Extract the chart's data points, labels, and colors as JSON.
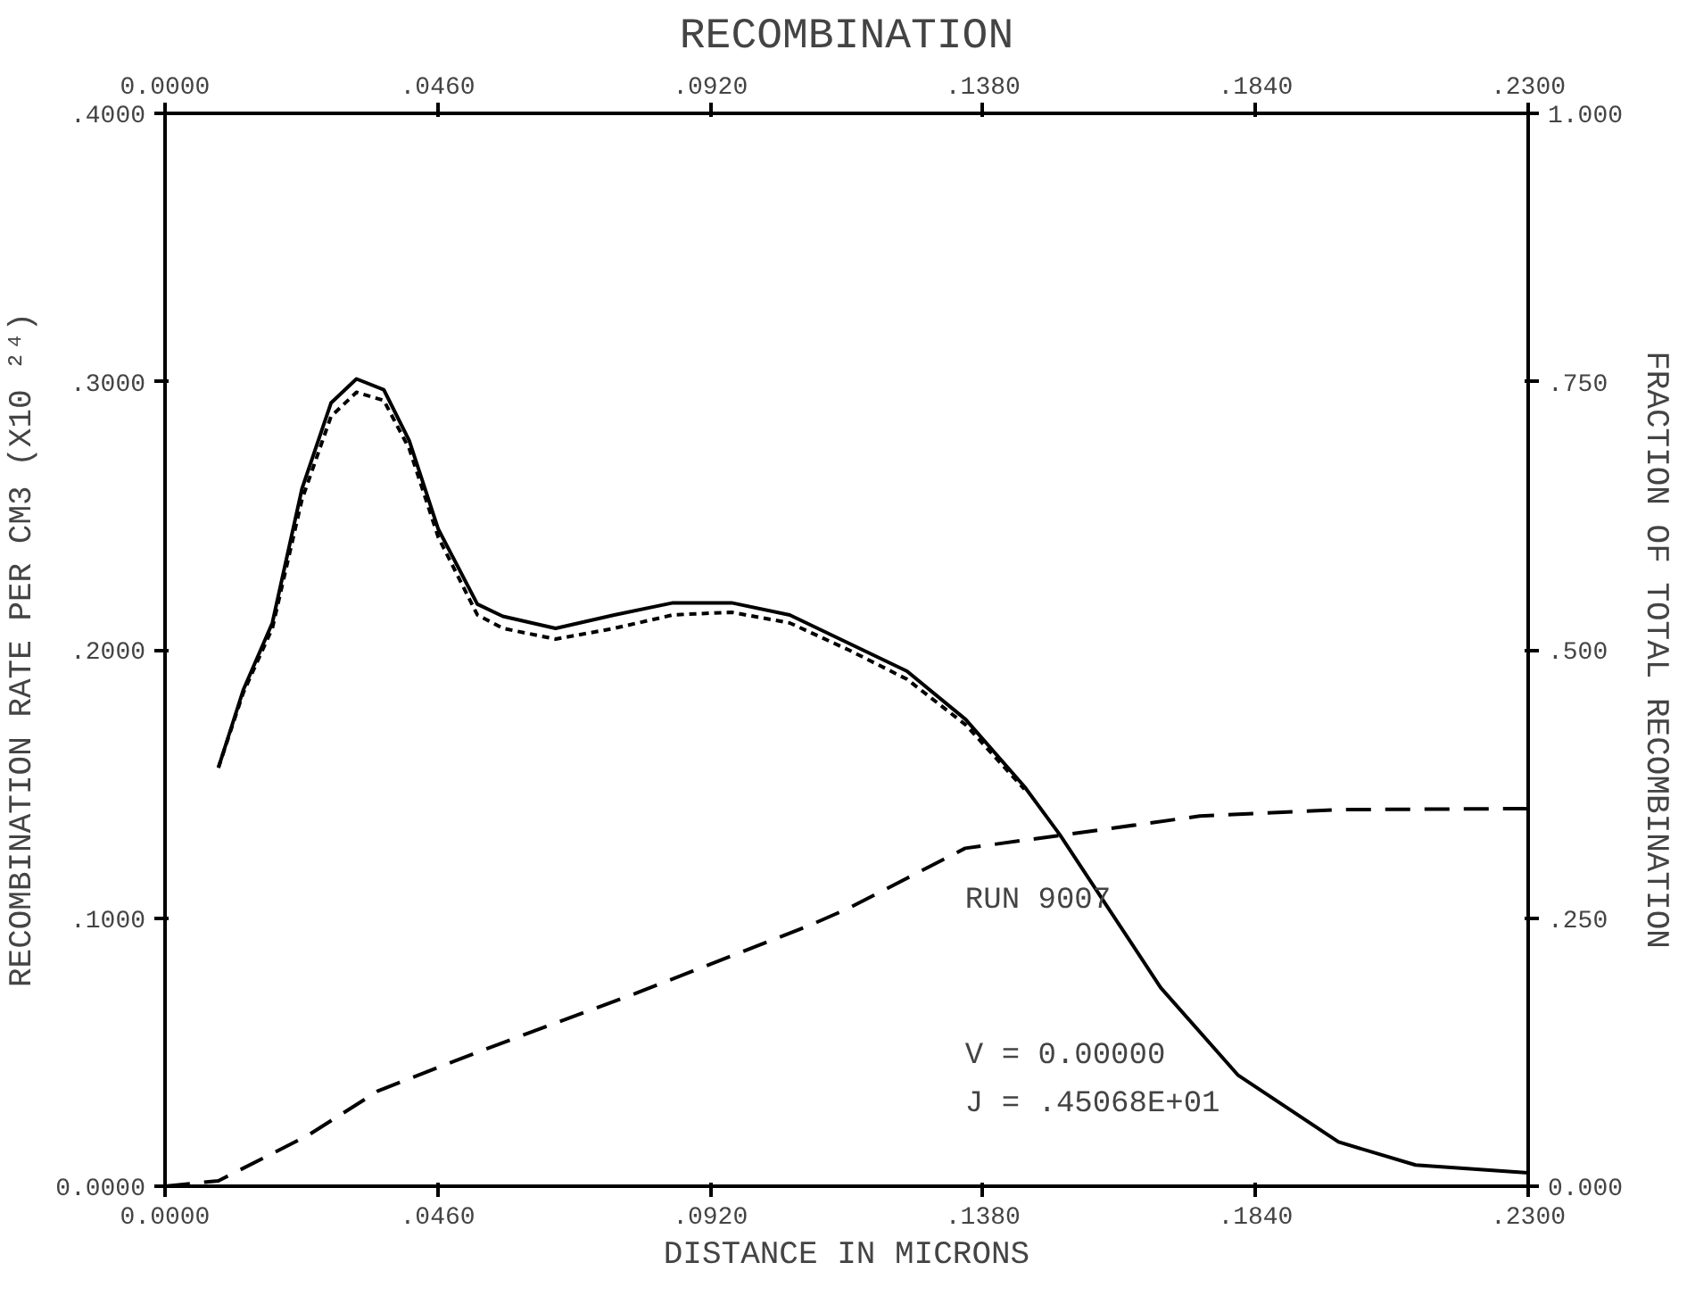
{
  "chart_data": {
    "type": "line",
    "title": "RECOMBINATION",
    "xlabel": "DISTANCE IN MICRONS",
    "ylabel": "RECOMBINATION RATE PER CM3 (X10 ²⁴)",
    "y2label": "FRACTION OF TOTAL RECOMBINATION",
    "xlim": [
      0,
      0.23
    ],
    "ylim": [
      0,
      0.4
    ],
    "y2lim": [
      0,
      1
    ],
    "x2lim": [
      0,
      0.23
    ],
    "xticks": [
      {
        "value": 0,
        "label": "0.0000"
      },
      {
        "value": 0.046,
        "label": ".0460"
      },
      {
        "value": 0.092,
        "label": ".0920"
      },
      {
        "value": 0.138,
        "label": ".1380"
      },
      {
        "value": 0.184,
        "label": ".1840"
      },
      {
        "value": 0.23,
        "label": ".2300"
      }
    ],
    "x2ticks": [
      {
        "value": 0,
        "label": "0.0000"
      },
      {
        "value": 0.046,
        "label": ".0460"
      },
      {
        "value": 0.092,
        "label": ".0920"
      },
      {
        "value": 0.138,
        "label": ".1380"
      },
      {
        "value": 0.184,
        "label": ".1840"
      },
      {
        "value": 0.23,
        "label": ".2300"
      }
    ],
    "yticks": [
      {
        "value": 0,
        "label": "0.0000"
      },
      {
        "value": 0.1,
        "label": ".1000"
      },
      {
        "value": 0.2,
        "label": ".2000"
      },
      {
        "value": 0.3,
        "label": ".3000"
      },
      {
        "value": 0.4,
        "label": ".4000"
      }
    ],
    "y2ticks": [
      {
        "value": 0,
        "label": "0.000"
      },
      {
        "value": 0.25,
        "label": ".250"
      },
      {
        "value": 0.5,
        "label": ".500"
      },
      {
        "value": 0.75,
        "label": ".750"
      },
      {
        "value": 1,
        "label": "1.000"
      }
    ],
    "grid": false,
    "series": [
      {
        "color": "#000000",
        "line_style": "solid",
        "x": [
          0.009,
          0.0132,
          0.0181,
          0.0231,
          0.028,
          0.0323,
          0.0369,
          0.0412,
          0.0461,
          0.0527,
          0.057,
          0.0659,
          0.0758,
          0.0857,
          0.0956,
          0.1054,
          0.1153,
          0.1252,
          0.1351,
          0.145,
          0.151,
          0.168,
          0.181,
          0.198,
          0.211,
          0.23
        ],
        "values": [
          0.156,
          0.185,
          0.21,
          0.26,
          0.292,
          0.301,
          0.297,
          0.278,
          0.245,
          0.217,
          0.2125,
          0.208,
          0.213,
          0.2175,
          0.2175,
          0.213,
          0.2025,
          0.192,
          0.174,
          0.149,
          0.131,
          0.074,
          0.0415,
          0.0165,
          0.0079,
          0.005
        ]
      },
      {
        "color": "#000000",
        "line_style": "dotted",
        "x": [
          0.009,
          0.0132,
          0.0181,
          0.0231,
          0.028,
          0.0323,
          0.0369,
          0.0412,
          0.0461,
          0.0527,
          0.057,
          0.0659,
          0.0758,
          0.0857,
          0.0956,
          0.1054,
          0.1153,
          0.1252,
          0.1351,
          0.145
        ],
        "values": [
          0.156,
          0.184,
          0.208,
          0.256,
          0.287,
          0.296,
          0.293,
          0.275,
          0.242,
          0.213,
          0.208,
          0.204,
          0.208,
          0.213,
          0.214,
          0.21,
          0.2,
          0.189,
          0.172,
          0.148
        ]
      },
      {
        "color": "#000000",
        "line_style": "dashed",
        "axis": "y2",
        "x": [
          0.0,
          0.009,
          0.024,
          0.036,
          0.0537,
          0.08,
          0.1087,
          0.1153,
          0.135,
          0.151,
          0.1746,
          0.198,
          0.23
        ],
        "values": [
          0.0,
          0.005,
          0.047,
          0.089,
          0.127,
          0.181,
          0.243,
          0.259,
          0.315,
          0.327,
          0.345,
          0.351,
          0.352
        ]
      }
    ],
    "annotations": [
      "RUN 9007",
      "V = 0.00000",
      "J = .45068E+01"
    ]
  }
}
